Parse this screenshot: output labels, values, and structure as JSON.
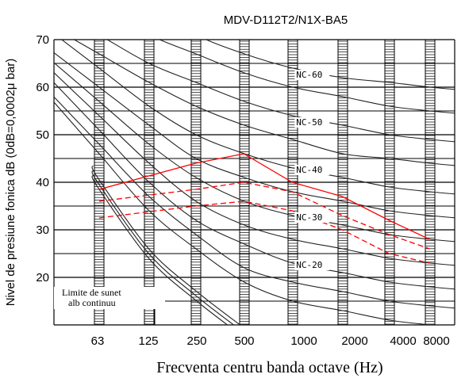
{
  "chart_data": {
    "type": "line",
    "title": "MDV-D112T2/N1X-BA5",
    "xlabel": "Frecventa centru banda octave (Hz)",
    "ylabel": "Nivel de presiune fonica dB (0dB=0,0002μ bar)",
    "categories": [
      "63",
      "125",
      "250",
      "500",
      "1000",
      "2000",
      "4000",
      "8000"
    ],
    "yticks": [
      "20",
      "30",
      "40",
      "50",
      "60",
      "70"
    ],
    "ylim": [
      10,
      70
    ],
    "grid": true,
    "colors": {
      "grid": "#000000",
      "nc_curves": "#222222",
      "measured": "#ff0000"
    },
    "nc_labels": [
      {
        "text": "NC-60",
        "x": 1000,
        "y": 62
      },
      {
        "text": "NC-50",
        "x": 1000,
        "y": 52
      },
      {
        "text": "NC-40",
        "x": 1000,
        "y": 42
      },
      {
        "text": "NC-30",
        "x": 1000,
        "y": 32
      },
      {
        "text": "NC-20",
        "x": 1000,
        "y": 22
      }
    ],
    "nc_curves": [
      {
        "values": [
          83,
          77,
          71,
          67,
          64,
          62,
          61,
          60
        ]
      },
      {
        "values": [
          77,
          71,
          67,
          63,
          60,
          58,
          56,
          55
        ]
      },
      {
        "values": [
          71,
          65,
          61,
          57,
          54,
          52,
          50,
          49
        ]
      },
      {
        "values": [
          67,
          61,
          56,
          52,
          49,
          46,
          45,
          44
        ]
      },
      {
        "values": [
          64,
          56,
          50,
          46,
          43,
          41,
          39,
          38
        ]
      },
      {
        "values": [
          60,
          52,
          45,
          41,
          38,
          36,
          34,
          33
        ]
      },
      {
        "values": [
          57,
          48,
          41,
          36,
          33,
          31,
          29,
          28
        ]
      },
      {
        "values": [
          54,
          44,
          36,
          31,
          28,
          26,
          24,
          23
        ]
      },
      {
        "values": [
          51,
          40,
          32,
          27,
          23,
          21,
          19,
          18
        ]
      },
      {
        "values": [
          48,
          37,
          29,
          22,
          19,
          17,
          15,
          14
        ]
      },
      {
        "values": [
          46,
          34,
          26,
          19,
          15,
          13,
          11,
          10
        ]
      }
    ],
    "white_noise_curves": [
      {
        "values": [
          41,
          26,
          17,
          9
        ]
      },
      {
        "values": [
          40,
          25,
          16,
          8
        ]
      },
      {
        "values": [
          39,
          24,
          15,
          7
        ]
      }
    ],
    "annotation": {
      "lines": [
        "Limite de sunet",
        "alb  continuu"
      ]
    },
    "series": [
      {
        "style": "solid",
        "x": [
          63,
          250,
          500,
          1000,
          2000,
          4000,
          8000
        ],
        "values": [
          38.5,
          44,
          46,
          40,
          37,
          32,
          28
        ]
      },
      {
        "style": "dashed",
        "x": [
          63,
          250,
          500,
          1000,
          2000,
          4000,
          8000
        ],
        "values": [
          36,
          38.5,
          40,
          38,
          33,
          29,
          26
        ]
      },
      {
        "style": "dashed",
        "x": [
          63,
          250,
          500,
          1000,
          2000,
          4000,
          8000
        ],
        "values": [
          32.5,
          35,
          36,
          34,
          30,
          25,
          23
        ]
      }
    ]
  }
}
